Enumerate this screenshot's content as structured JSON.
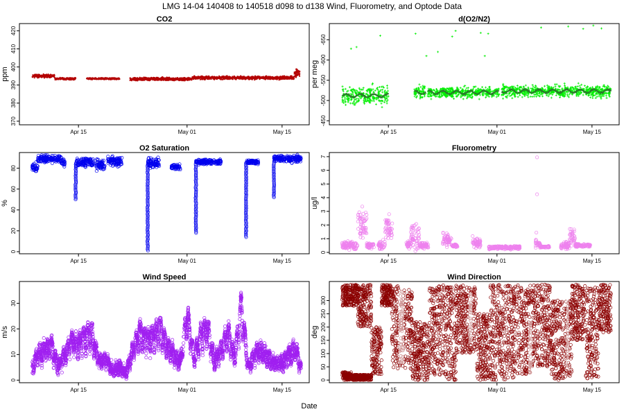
{
  "figure": {
    "title": "LMG  14-04    140408 to 140518    d098 to d138   Wind, Fluorometry, and Optode Data",
    "xlabel": "Date"
  },
  "chart_data": [
    {
      "type": "scatter",
      "title": "CO2",
      "ylabel": "ppm",
      "x_ticks": [
        {
          "day": 105,
          "label": "Apr 15"
        },
        {
          "day": 121,
          "label": "May 01"
        },
        {
          "day": 135,
          "label": "May 15"
        }
      ],
      "y_ticks": [
        370,
        380,
        390,
        400,
        410,
        420
      ],
      "ylim": [
        368,
        424
      ],
      "y_reversed": false,
      "color": "#b40000",
      "marker": "dot",
      "segments": [
        {
          "x0": 98.2,
          "x1": 101.5,
          "mean": 395,
          "spread": 0.8
        },
        {
          "x0": 101.5,
          "x1": 104.6,
          "mean": 393.5,
          "spread": 0.5
        },
        {
          "x0": 106.2,
          "x1": 111.1,
          "mean": 393.5,
          "spread": 0.4
        },
        {
          "x0": 112.6,
          "x1": 121.7,
          "mean": 393.3,
          "spread": 0.8
        },
        {
          "x0": 121.7,
          "x1": 136.8,
          "mean": 394.0,
          "spread": 0.8
        },
        {
          "x0": 136.8,
          "x1": 137.6,
          "mean": 396.5,
          "spread": 2.0
        }
      ]
    },
    {
      "type": "scatter",
      "title": "d(O2/N2)",
      "ylabel": "per meg",
      "x_ticks": [
        {
          "day": 105,
          "label": "Apr 15"
        },
        {
          "day": 121,
          "label": "May 01"
        },
        {
          "day": 135,
          "label": "May 15"
        }
      ],
      "y_ticks": [
        -450,
        -500,
        -550,
        -600,
        -650
      ],
      "ylim": [
        -440,
        -690
      ],
      "y_reversed": true,
      "color": "#00ee00",
      "marker": "plus",
      "trend_color": "#2a7a2a",
      "segments": [
        {
          "x0": 98.2,
          "x1": 105.0,
          "mean": -512,
          "spread": 22
        },
        {
          "x0": 108.8,
          "x1": 110.5,
          "mean": -520,
          "spread": 15
        },
        {
          "x0": 110.8,
          "x1": 121.3,
          "mean": -520,
          "spread": 12
        },
        {
          "x0": 121.7,
          "x1": 137.8,
          "mean": -523,
          "spread": 13
        }
      ],
      "outliers": [
        {
          "x": 99.5,
          "y": -628
        },
        {
          "x": 100.3,
          "y": -632
        },
        {
          "x": 103.8,
          "y": -660
        },
        {
          "x": 109.0,
          "y": -665
        },
        {
          "x": 114.4,
          "y": -658
        },
        {
          "x": 114.9,
          "y": -672
        },
        {
          "x": 118.6,
          "y": -667
        },
        {
          "x": 119.7,
          "y": -665
        },
        {
          "x": 127.5,
          "y": -680
        },
        {
          "x": 131.5,
          "y": -683
        },
        {
          "x": 133.7,
          "y": -677
        },
        {
          "x": 135.2,
          "y": -685
        },
        {
          "x": 136.4,
          "y": -678
        },
        {
          "x": 110.6,
          "y": -610
        },
        {
          "x": 112.3,
          "y": -620
        },
        {
          "x": 119.2,
          "y": -610
        }
      ]
    },
    {
      "type": "scatter",
      "title": "O2 Saturation",
      "ylabel": "%",
      "x_ticks": [
        {
          "day": 105,
          "label": "Apr 15"
        },
        {
          "day": 121,
          "label": "May 01"
        },
        {
          "day": 135,
          "label": "May 15"
        }
      ],
      "y_ticks": [
        0,
        20,
        40,
        60,
        80
      ],
      "ylim": [
        -2,
        95
      ],
      "y_reversed": false,
      "color": "#0000ee",
      "marker": "circle",
      "segments": [
        {
          "x0": 98.2,
          "x1": 99.0,
          "mean": 81,
          "spread": 4
        },
        {
          "x0": 99.0,
          "x1": 102.5,
          "mean": 89,
          "spread": 3
        },
        {
          "x0": 102.5,
          "x1": 103.0,
          "mean": 85,
          "spread": 3
        },
        {
          "x0": 104.6,
          "x1": 107.2,
          "mean": 86,
          "spread": 4
        },
        {
          "x0": 107.5,
          "x1": 108.9,
          "mean": 83,
          "spread": 5
        },
        {
          "x0": 109.3,
          "x1": 111.4,
          "mean": 86,
          "spread": 4
        },
        {
          "x0": 115.2,
          "x1": 116.9,
          "mean": 85,
          "spread": 4
        },
        {
          "x0": 118.7,
          "x1": 120.0,
          "mean": 81,
          "spread": 3
        },
        {
          "x0": 122.3,
          "x1": 126.0,
          "mean": 86,
          "spread": 2
        },
        {
          "x0": 129.7,
          "x1": 131.5,
          "mean": 86,
          "spread": 2
        },
        {
          "x0": 133.8,
          "x1": 137.8,
          "mean": 89,
          "spread": 3
        }
      ],
      "spikes": [
        {
          "x": 104.6,
          "ymin": 50,
          "ymax": 85
        },
        {
          "x": 115.2,
          "ymin": 1,
          "ymax": 85
        },
        {
          "x": 122.3,
          "ymin": 18,
          "ymax": 85
        },
        {
          "x": 129.7,
          "ymin": 14,
          "ymax": 85
        },
        {
          "x": 133.8,
          "ymin": 52,
          "ymax": 85
        }
      ]
    },
    {
      "type": "scatter",
      "title": "Fluorometry",
      "ylabel": "ug/l",
      "x_ticks": [
        {
          "day": 105,
          "label": "Apr 15"
        },
        {
          "day": 121,
          "label": "May 01"
        },
        {
          "day": 135,
          "label": "May 15"
        }
      ],
      "y_ticks": [
        0,
        1,
        2,
        3,
        4,
        5,
        6,
        7
      ],
      "ylim": [
        -0.1,
        7.3
      ],
      "y_reversed": false,
      "color": "#ee82ee",
      "marker": "circle",
      "segments": [
        {
          "x0": 98.2,
          "x1": 100.5,
          "mean": 0.5,
          "spread": 0.25
        },
        {
          "x0": 100.5,
          "x1": 101.8,
          "mean": 2.0,
          "spread": 1.0
        },
        {
          "x0": 101.8,
          "x1": 102.9,
          "mean": 0.5,
          "spread": 0.2
        },
        {
          "x0": 103.5,
          "x1": 104.5,
          "mean": 0.5,
          "spread": 0.3
        },
        {
          "x0": 104.5,
          "x1": 105.6,
          "mean": 1.7,
          "spread": 0.9
        },
        {
          "x0": 107.6,
          "x1": 108.3,
          "mean": 0.6,
          "spread": 0.3
        },
        {
          "x0": 108.3,
          "x1": 109.6,
          "mean": 1.2,
          "spread": 0.8
        },
        {
          "x0": 109.6,
          "x1": 110.9,
          "mean": 0.5,
          "spread": 0.2
        },
        {
          "x0": 113.0,
          "x1": 114.3,
          "mean": 0.9,
          "spread": 0.4
        },
        {
          "x0": 114.3,
          "x1": 115.2,
          "mean": 0.5,
          "spread": 0.1
        },
        {
          "x0": 117.4,
          "x1": 118.6,
          "mean": 0.7,
          "spread": 0.35
        },
        {
          "x0": 119.8,
          "x1": 124.4,
          "mean": 0.35,
          "spread": 0.1
        },
        {
          "x0": 126.7,
          "x1": 127.4,
          "mean": 0.6,
          "spread": 0.3
        },
        {
          "x0": 127.4,
          "x1": 128.7,
          "mean": 0.4,
          "spread": 0.05
        },
        {
          "x0": 130.4,
          "x1": 131.7,
          "mean": 0.5,
          "spread": 0.25
        },
        {
          "x0": 131.7,
          "x1": 132.5,
          "mean": 1.1,
          "spread": 0.6
        },
        {
          "x0": 132.5,
          "x1": 134.8,
          "mean": 0.5,
          "spread": 0.1
        }
      ],
      "outliers": [
        {
          "x": 126.9,
          "y": 6.95
        },
        {
          "x": 126.9,
          "y": 4.25
        },
        {
          "x": 126.8,
          "y": 1.45
        }
      ]
    },
    {
      "type": "scatter",
      "title": "Wind Speed",
      "ylabel": "m/s",
      "x_ticks": [
        {
          "day": 105,
          "label": "Apr 15"
        },
        {
          "day": 121,
          "label": "May 01"
        },
        {
          "day": 135,
          "label": "May 15"
        }
      ],
      "y_ticks": [
        0,
        10,
        20,
        30
      ],
      "ylim": [
        -1,
        38.5
      ],
      "y_reversed": false,
      "color": "#a020f0",
      "marker": "circle",
      "series_x": [
        98,
        99,
        100,
        101,
        102,
        103,
        104,
        105,
        106,
        107,
        108,
        109,
        110,
        111,
        112,
        113,
        114,
        115,
        116,
        117,
        118,
        119,
        120,
        121,
        122,
        123,
        124,
        125,
        126,
        127,
        128,
        129,
        130,
        131,
        132,
        133,
        134,
        135,
        136,
        137,
        138
      ],
      "series_y": [
        4,
        12,
        14,
        16,
        6,
        12,
        18,
        16,
        20,
        22,
        8,
        10,
        4,
        6,
        3,
        14,
        22,
        18,
        20,
        24,
        16,
        12,
        8,
        30,
        10,
        20,
        24,
        8,
        14,
        22,
        10,
        34,
        6,
        12,
        14,
        10,
        8,
        8,
        12,
        14,
        4
      ],
      "spread": 3.5
    },
    {
      "type": "scatter",
      "title": "Wind Direction",
      "ylabel": "deg",
      "x_ticks": [
        {
          "day": 105,
          "label": "Apr 15"
        },
        {
          "day": 121,
          "label": "May 01"
        },
        {
          "day": 135,
          "label": "May 15"
        }
      ],
      "y_ticks": [
        0,
        50,
        100,
        150,
        200,
        250,
        300
      ],
      "ylim": [
        -10,
        372
      ],
      "y_reversed": false,
      "color": "#8b0000",
      "marker": "circle",
      "segments": [
        {
          "x0": 98.2,
          "x1": 99.5,
          "ymin": 0,
          "ymax": 30
        },
        {
          "x0": 98.2,
          "x1": 100.5,
          "ymin": 280,
          "ymax": 360
        },
        {
          "x0": 99.5,
          "x1": 102.5,
          "ymin": 0,
          "ymax": 20
        },
        {
          "x0": 100.5,
          "x1": 102.5,
          "ymin": 200,
          "ymax": 360
        },
        {
          "x0": 102.5,
          "x1": 104.0,
          "ymin": 20,
          "ymax": 200
        },
        {
          "x0": 104.0,
          "x1": 105.5,
          "ymin": 280,
          "ymax": 360
        },
        {
          "x0": 105.5,
          "x1": 108.5,
          "ymin": 40,
          "ymax": 360
        },
        {
          "x0": 108.5,
          "x1": 111.0,
          "ymin": 0,
          "ymax": 220
        },
        {
          "x0": 111.0,
          "x1": 113.5,
          "ymin": 20,
          "ymax": 360
        },
        {
          "x0": 113.5,
          "x1": 115.0,
          "ymin": 0,
          "ymax": 360
        },
        {
          "x0": 115.0,
          "x1": 118.0,
          "ymin": 100,
          "ymax": 360
        },
        {
          "x0": 118.0,
          "x1": 120.0,
          "ymin": 0,
          "ymax": 250
        },
        {
          "x0": 120.0,
          "x1": 123.5,
          "ymin": 0,
          "ymax": 360
        },
        {
          "x0": 123.5,
          "x1": 126.0,
          "ymin": 20,
          "ymax": 360
        },
        {
          "x0": 126.0,
          "x1": 129.0,
          "ymin": 50,
          "ymax": 360
        },
        {
          "x0": 129.0,
          "x1": 132.0,
          "ymin": 0,
          "ymax": 300
        },
        {
          "x0": 132.0,
          "x1": 134.0,
          "ymin": 150,
          "ymax": 360
        },
        {
          "x0": 134.0,
          "x1": 136.0,
          "ymin": 0,
          "ymax": 360
        },
        {
          "x0": 136.0,
          "x1": 137.8,
          "ymin": 180,
          "ymax": 360
        }
      ],
      "gaps": [
        {
          "x0": 106.5,
          "x1": 107.3,
          "ymin": 60,
          "ymax": 340
        },
        {
          "x0": 116.8,
          "x1": 117.4,
          "ymin": 140,
          "ymax": 330
        },
        {
          "x0": 125.6,
          "x1": 126.2,
          "ymin": 20,
          "ymax": 230
        },
        {
          "x0": 131.2,
          "x1": 131.6,
          "ymin": 60,
          "ymax": 330
        }
      ]
    }
  ]
}
